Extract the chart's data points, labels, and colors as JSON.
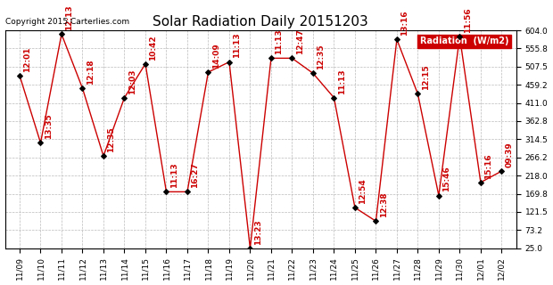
{
  "title": "Solar Radiation Daily 20151203",
  "copyright": "Copyright 2015 Carterlies.com",
  "legend_label": "Radiation  (W/m2)",
  "x_labels": [
    "11/09",
    "11/10",
    "11/11",
    "11/12",
    "11/13",
    "11/14",
    "11/15",
    "11/16",
    "11/17",
    "11/18",
    "11/19",
    "11/20",
    "11/21",
    "11/22",
    "11/23",
    "11/24",
    "11/25",
    "11/26",
    "11/27",
    "11/28",
    "11/29",
    "11/30",
    "12/01",
    "12/02"
  ],
  "y_values": [
    484,
    305,
    594,
    450,
    270,
    425,
    515,
    175,
    175,
    493,
    520,
    25,
    530,
    530,
    490,
    425,
    133,
    97,
    580,
    435,
    165,
    587,
    200,
    230
  ],
  "point_labels": [
    "12:01",
    "13:35",
    "12:13",
    "12:18",
    "12:35",
    "12:03",
    "10:42",
    "11:13",
    "16:27",
    "14:09",
    "11:13",
    "13:23",
    "11:13",
    "12:47",
    "12:35",
    "11:13",
    "12:54",
    "12:38",
    "13:16",
    "12:15",
    "15:46",
    "11:56",
    "15:16",
    "09:39"
  ],
  "ylim": [
    25.0,
    604.0
  ],
  "yticks": [
    25.0,
    73.2,
    121.5,
    169.8,
    218.0,
    266.2,
    314.5,
    362.8,
    411.0,
    459.2,
    507.5,
    555.8,
    604.0
  ],
  "line_color": "#cc0000",
  "point_color": "#000000",
  "label_color": "#cc0000",
  "grid_color": "#bbbbbb",
  "legend_bg": "#cc0000",
  "legend_text_color": "#ffffff",
  "background_color": "#ffffff",
  "title_fontsize": 11,
  "copyright_fontsize": 6.5,
  "label_fontsize": 6.5,
  "tick_fontsize": 6.5
}
